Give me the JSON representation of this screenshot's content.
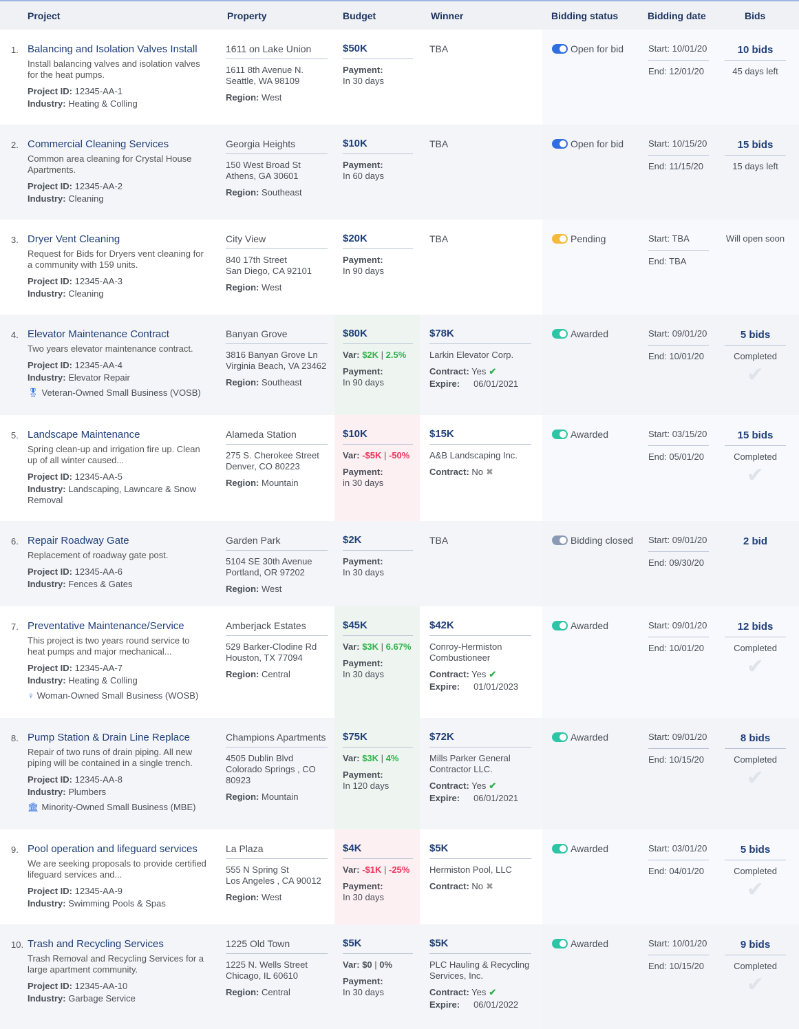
{
  "header": {
    "project": "Project",
    "property": "Property",
    "budget": "Budget",
    "winner": "Winner",
    "status": "Bidding status",
    "date": "Bidding date",
    "bids": "Bids"
  },
  "colors": {
    "open": "#2f6fe0",
    "pending": "#f6b93b",
    "awarded": "#2ec4a6",
    "closed": "#8a9ab5",
    "positive": "#2fb24c",
    "negative": "#f0325a"
  },
  "labels": {
    "project_id": "Project ID:",
    "industry": "Industry:",
    "region": "Region:",
    "payment": "Payment:",
    "var": "Var:",
    "contract": "Contract:",
    "expire": "Expire:",
    "start": "Start:",
    "end": "End:"
  },
  "rows": [
    {
      "num": "1.",
      "title": "Balancing and Isolation Valves Install",
      "desc": "Install balancing valves and isolation valves for the heat pumps.",
      "project_id": "12345-AA-1",
      "industry": "Heating & Colling",
      "property": "1611 on Lake Union",
      "address1": "1611 8th Avenue N.",
      "address2": "Seattle, WA 98109",
      "region": "West",
      "budget": "$50K",
      "payment": "In 30 days",
      "winner": "TBA",
      "status": "Open for bid",
      "status_type": "open",
      "start": "10/01/20",
      "end": "12/01/20",
      "bids": "10 bids",
      "bids_sub": "45 days left"
    },
    {
      "num": "2.",
      "title": "Commercial Cleaning Services",
      "desc": "Common area cleaning for Crystal House Apartments.",
      "project_id": "12345-AA-2",
      "industry": "Cleaning",
      "property": "Georgia Heights",
      "address1": "150 West Broad St",
      "address2": "Athens, GA 30601",
      "region": "Southeast",
      "budget": "$10K",
      "payment": "In 60 days",
      "winner": "TBA",
      "status": "Open for bid",
      "status_type": "open",
      "start": "10/15/20",
      "end": "11/15/20",
      "bids": "15 bids",
      "bids_sub": "15 days left"
    },
    {
      "num": "3.",
      "title": "Dryer Vent Cleaning",
      "desc": "Request for Bids for Dryers vent cleaning for a community with 159 units.",
      "project_id": "12345-AA-3",
      "industry": "Cleaning",
      "property": "City View",
      "address1": "840 17th Street",
      "address2": "San Diego, CA 92101",
      "region": "West",
      "budget": "$20K",
      "payment": "In 90 days",
      "winner": "TBA",
      "status": "Pending",
      "status_type": "pending",
      "start": "TBA",
      "end": "TBA",
      "bids_note": "Will open soon"
    },
    {
      "num": "4.",
      "title": "Elevator Maintenance Contract",
      "desc": "Two years elevator maintenance contract.",
      "project_id": "12345-AA-4",
      "industry": "Elevator Repair",
      "badge_icon": "medal-icon",
      "badge": "Veteran-Owned Small Business (VOSB)",
      "property": "Banyan Grove",
      "address1": "3816 Banyan Grove Ln",
      "address2": "Virginia Beach, VA 23462",
      "region": "Southeast",
      "budget": "$80K",
      "var_type": "pos",
      "var_amount": "$2K",
      "var_pct": "2.5%",
      "payment": "In 90 days",
      "winner_amount": "$78K",
      "winner": "Larkin Elevator Corp.",
      "contract": "Yes",
      "expire": "06/01/2021",
      "status": "Awarded",
      "status_type": "awarded",
      "start": "09/01/20",
      "end": "10/01/20",
      "bids": "5 bids",
      "bids_sub": "Completed"
    },
    {
      "num": "5.",
      "title": "Landscape Maintenance",
      "desc": "Spring clean-up and irrigation fire up. Clean up of all winter caused...",
      "project_id": "12345-AA-5",
      "industry": "Landscaping, Lawncare & Snow Removal",
      "property": "Alameda Station",
      "address1": "275 S. Cherokee Street",
      "address2": "Denver, CO 80223",
      "region": "Mountain",
      "budget": "$10K",
      "var_type": "neg",
      "var_amount": "-$5K",
      "var_pct": "-50%",
      "payment": "in 30 days",
      "winner_amount": "$15K",
      "winner": "A&B Landscaping Inc.",
      "contract": "No",
      "status": "Awarded",
      "status_type": "awarded",
      "start": "03/15/20",
      "end": "05/01/20",
      "bids": "15 bids",
      "bids_sub": "Completed"
    },
    {
      "num": "6.",
      "title": "Repair Roadway Gate",
      "desc": "Replacement of roadway gate post.",
      "project_id": "12345-AA-6",
      "industry": "Fences & Gates",
      "property": "Garden Park",
      "address1": "5104 SE 30th Avenue",
      "address2": "Portland, OR 97202",
      "region": "West",
      "budget": "$2K",
      "payment": "In 30 days",
      "winner": "TBA",
      "status": "Bidding closed",
      "status_type": "closed",
      "start": "09/01/20",
      "end": "09/30/20",
      "bids": "2 bid"
    },
    {
      "num": "7.",
      "title": "Preventative Maintenance/Service",
      "desc": "This project is two years round service to heat pumps and major mechanical...",
      "project_id": "12345-AA-7",
      "industry": "Heating & Colling",
      "badge_icon": "female-symbol-icon",
      "badge": "Woman-Owned Small Business (WOSB)",
      "property": "Amberjack Estates",
      "address1": "529 Barker-Clodine Rd",
      "address2": "Houston, TX 77094",
      "region": "Central",
      "budget": "$45K",
      "var_type": "pos",
      "var_amount": "$3K",
      "var_pct": "6.67%",
      "payment": "In 30 days",
      "winner_amount": "$42K",
      "winner": "Conroy-Hermiston Combustioneer",
      "contract": "Yes",
      "expire": "01/01/2023",
      "status": "Awarded",
      "status_type": "awarded",
      "start": "09/01/20",
      "end": "10/01/20",
      "bids": "12 bids",
      "bids_sub": "Completed"
    },
    {
      "num": "8.",
      "title": "Pump Station & Drain Line Replace",
      "desc": "Repair of two runs of drain piping. All new piping will be contained in a single trench.",
      "project_id": "12345-AA-8",
      "industry": "Plumbers",
      "badge_icon": "building-icon",
      "badge": "Minority-Owned Small Business (MBE)",
      "property": "Champions Apartments",
      "address1": "4505 Dublin Blvd",
      "address2": "Colorado Springs , CO 80923",
      "region": "Mountain",
      "budget": "$75K",
      "var_type": "pos",
      "var_amount": "$3K",
      "var_pct": "4%",
      "payment": "In 120 days",
      "winner_amount": "$72K",
      "winner": "Mills Parker General Contractor LLC.",
      "contract": "Yes",
      "expire": "06/01/2021",
      "status": "Awarded",
      "status_type": "awarded",
      "start": "09/01/20",
      "end": "10/15/20",
      "bids": "8 bids",
      "bids_sub": "Completed"
    },
    {
      "num": "9.",
      "title": "Pool operation and lifeguard services",
      "desc": "We are seeking proposals to provide certified lifeguard services and...",
      "project_id": "12345-AA-9",
      "industry": "Swimming Pools & Spas",
      "property": "La Plaza",
      "address1": "555 N Spring St",
      "address2": "Los Angeles , CA 90012",
      "region": "West",
      "budget": "$4K",
      "var_type": "neg",
      "var_amount": "-$1K",
      "var_pct": "-25%",
      "payment": "In 30 days",
      "winner_amount": "$5K",
      "winner": "Hermiston Pool, LLC",
      "contract": "No",
      "status": "Awarded",
      "status_type": "awarded",
      "start": "03/01/20",
      "end": "04/01/20",
      "bids": "5 bids",
      "bids_sub": "Completed"
    },
    {
      "num": "10.",
      "title": "Trash and Recycling Services",
      "desc": "Trash Removal and Recycling Services for a large apartment community.",
      "project_id": "12345-AA-10",
      "industry": "Garbage Service",
      "property": "1225 Old Town",
      "address1": "1225 N. Wells Street",
      "address2": "Chicago, IL 60610",
      "region": "Central",
      "budget": "$5K",
      "var_type": "zero",
      "var_amount": "$0",
      "var_pct": "0%",
      "payment": "In 30 days",
      "winner_amount": "$5K",
      "winner": "PLC Hauling & Recycling Services, Inc.",
      "contract": "Yes",
      "expire": "06/01/2022",
      "status": "Awarded",
      "status_type": "awarded",
      "start": "10/01/20",
      "end": "10/15/20",
      "bids": "9 bids",
      "bids_sub": "Completed"
    }
  ]
}
